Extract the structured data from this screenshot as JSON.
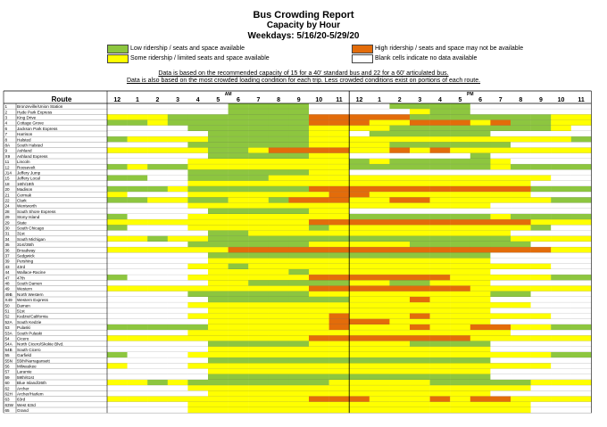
{
  "report": {
    "title": "Bus Crowding Report",
    "subtitle": "Capacity by Hour",
    "dates": "Weekdays:  5/16/20-5/29/20"
  },
  "legend": {
    "items": [
      {
        "label": "Low ridership / seats and space available",
        "color": "#8dc63f"
      },
      {
        "label": "Some ridership / limited seats and space available",
        "color": "#ffff00"
      },
      {
        "label": "High ridership / seats and space may not be available",
        "color": "#e36c0a"
      },
      {
        "label": "Blank cells indicate no data available",
        "color": "#ffffff"
      }
    ]
  },
  "notes": {
    "line1": "Data is based on the recommended capacity of 15 for a 40' standard bus and 22 for a 60' articulated bus.",
    "line2": "Data is also based on the most crowded loading condition for each trip.  Less crowded conditions exist on portions of each route."
  },
  "table": {
    "route_header": "Route",
    "am_label": "AM",
    "pm_label": "PM",
    "hours": [
      "12",
      "1",
      "2",
      "3",
      "4",
      "5",
      "6",
      "7",
      "8",
      "9",
      "10",
      "11",
      "12",
      "1",
      "2",
      "3",
      "4",
      "5",
      "6",
      "7",
      "8",
      "9",
      "10",
      "11"
    ],
    "colors": {
      "G": "#8dc63f",
      "Y": "#ffff00",
      "O": "#e36c0a",
      "W": "#ffffff"
    },
    "rows": [
      {
        "num": "1",
        "name": "Bronzeville/Union Station",
        "cells": "WWWWWWGGGGWWWWGGGGWWWWWW"
      },
      {
        "num": "2",
        "name": "Hyde Park Express",
        "cells": "WWWWWWGGGGWWWWWYGGWWWWWW"
      },
      {
        "num": "3",
        "name": "King Drive",
        "cells": "YYYGGGGGGGOOOOOGGGGGGGYY"
      },
      {
        "num": "4",
        "name": "Cottage Grove",
        "cells": "GGYGGGGGGGOOOYYOOOYOGGYY"
      },
      {
        "num": "6",
        "name": "Jackson Park Express",
        "cells": "WWWWGGGGGGYYYYGGGGGGGGYW"
      },
      {
        "num": "7",
        "name": "Harrison",
        "cells": "WWWWWGGGGGYYWGGGGGGWWWWW"
      },
      {
        "num": "8",
        "name": "Halsted",
        "cells": "GYYYYGGGGGYYYYYYYYYYYYYG"
      },
      {
        "num": "8A",
        "name": "South Halsted",
        "cells": "WWWWGGGGGGYYYYGGGGGGWWWW"
      },
      {
        "num": "9",
        "name": "Ashland",
        "cells": "YYYYYGGYOOOOYYOYOYYYYYYY"
      },
      {
        "num": "X9",
        "name": "Ashland Express",
        "cells": "WWWWWGGGGGYYWWWWWWGWWWWW"
      },
      {
        "num": "11",
        "name": "Lincoln",
        "cells": "WWWWYYYYYYYYGYGGGGGYWWWW"
      },
      {
        "num": "12",
        "name": "Roosevelt",
        "cells": "GYGGYYYYYYYYGGGGGGGYGGGG"
      },
      {
        "num": "J14",
        "name": "Jeffery Jump",
        "cells": "WWWWGGGGGGYYWWWWWWWWWWWW"
      },
      {
        "num": "15",
        "name": "Jeffery Local",
        "cells": "GGWWGGGGYYYYYYYYYYYYYYWW"
      },
      {
        "num": "18",
        "name": "16th/18th",
        "cells": "WWWWYYYYYYYYYYYYYYYYYWWW"
      },
      {
        "num": "20",
        "name": "Madison",
        "cells": "GGGYGGGGGGOOOOOOOOOOOGGG"
      },
      {
        "num": "21",
        "name": "Cermak",
        "cells": "YWWWYYYYYYYOOYYYYYYYYWWW"
      },
      {
        "num": "22",
        "name": "Clark",
        "cells": "GGYYGGYYGOOOYYOOYYYYYYGG"
      },
      {
        "num": "24",
        "name": "Wentworth",
        "cells": "WWWWYYYYYYYYYYYYYYYWWWWW"
      },
      {
        "num": "28",
        "name": "South Shore Express",
        "cells": "WWWWWGGGGGYYWWWWWWWWWWWW"
      },
      {
        "num": "29",
        "name": "Stony Island",
        "cells": "GWWWYYYYYYYYGGGGGGGYGGGG"
      },
      {
        "num": "29",
        "name": "State",
        "cells": "YYYYYYYYYYOOOOOOOOOOOYYY"
      },
      {
        "num": "30",
        "name": "South Chicago",
        "cells": "GWWWYYYYYYGYYYYYYYYYYGWW"
      },
      {
        "num": "31",
        "name": "31st",
        "cells": "WWWWWGGYYYYYYYYYYYYYWWWW"
      },
      {
        "num": "34",
        "name": "South Michigan",
        "cells": "YYGYYGGGGGGGGGGGGGGGYYYY"
      },
      {
        "num": "35",
        "name": "31st/35th",
        "cells": "WWWWGGGGGGYYYYYGGGGGGWWW"
      },
      {
        "num": "36",
        "name": "Broadway",
        "cells": "YYYYYYOOOOOOOOOOOOOOOOYY"
      },
      {
        "num": "37",
        "name": "Sedgwick",
        "cells": "WWWWWGGGGGGGGGGGGGGWWWWW"
      },
      {
        "num": "39",
        "name": "Pershing",
        "cells": "WWWWWYYYYYYYYYYYYYYWWWWW"
      },
      {
        "num": "43",
        "name": "43rd",
        "cells": "WWWWYYGYYYYYYYYYYYYYYYWW"
      },
      {
        "num": "44",
        "name": "Wallace-Racine",
        "cells": "WWWWWYYYYGYYYYYYYYYWWWWW"
      },
      {
        "num": "47",
        "name": "47th",
        "cells": "GWWWYYYYYYOOOOOOOYYYYYGG"
      },
      {
        "num": "48",
        "name": "South Damen",
        "cells": "WWWWWYYGGGGGYYGGYYYWWWWW"
      },
      {
        "num": "49",
        "name": "Western",
        "cells": "YYYYYYYYYYOOOOOOOOYYYYYY"
      },
      {
        "num": "49B",
        "name": "North Western",
        "cells": "WWWWGGGGGGYYYYYYYYYGGWWW"
      },
      {
        "num": "X49",
        "name": "Western Express",
        "cells": "WWWWWGGGGGGGYYYOYYYWWWWW"
      },
      {
        "num": "50",
        "name": "Damen",
        "cells": "WWWWYYYYYYYYYYYYYYYYYWWW"
      },
      {
        "num": "51",
        "name": "51st",
        "cells": "WWWWWYYYYYYYYYYYYYYWWWWW"
      },
      {
        "num": "52",
        "name": "Kedzie/California",
        "cells": "WWWWYYYYYYYOYYYOYYYYYYWW"
      },
      {
        "num": "52A",
        "name": "South Kedzie",
        "cells": "WWWWWYYYYYYOOOYYYYYWWWWW"
      },
      {
        "num": "53",
        "name": "Pulaski",
        "cells": "GGGGGYYYYYYOYYYOYYOOYYGG"
      },
      {
        "num": "53A",
        "name": "South Pulaski",
        "cells": "WWWWYYYYYYYYYYYYYYYYWWWW"
      },
      {
        "num": "54",
        "name": "Cicero",
        "cells": "YYYYYYYYYYOOOOOOOOYYYYYY"
      },
      {
        "num": "54A",
        "name": "North Cicero/Skokie Blvd.",
        "cells": "WWWWWGGGGGYYYYYGGGGWWWWW"
      },
      {
        "num": "54B",
        "name": "South Cicero",
        "cells": "WWWWWYYYYYYYYYYYYYYWWWWW"
      },
      {
        "num": "55",
        "name": "Garfield",
        "cells": "GWWWYYYYYYYYYYYYYYYYYYGG"
      },
      {
        "num": "55N",
        "name": "55th/Narragansett",
        "cells": "WWWWWGGGGGGGGGGGGGGWWWWW"
      },
      {
        "num": "56",
        "name": "Milwaukee",
        "cells": "YWWWYYYYYYYYYYYYYYYYYYWW"
      },
      {
        "num": "57",
        "name": "Laramie",
        "cells": "WWWWWYYYYYYYYYYYYYYWWWWW"
      },
      {
        "num": "59",
        "name": "59th/61st",
        "cells": "WWWWWGGGGGGGGGGGGGGWWWWW"
      },
      {
        "num": "60",
        "name": "Blue Island/26th",
        "cells": "YYGYGGGGGGGYYYYYGGGGGYYY"
      },
      {
        "num": "62",
        "name": "Archer",
        "cells": "WWWWYYYYYYYYYYYYYYYYYWWW"
      },
      {
        "num": "62H",
        "name": "Archer/Harlem",
        "cells": "WWWWWYYYYYYYYYYYYYYWWWWW"
      },
      {
        "num": "63",
        "name": "63rd",
        "cells": "YYYYYYYYYYOOOYYYOYOOYYYY"
      },
      {
        "num": "63W",
        "name": "West 63rd",
        "cells": "WWWWYYYYYYYYYYYYYYYYYWWW"
      },
      {
        "num": "65",
        "name": "Grand",
        "cells": "WWWWYYYYYYYYYYYYYYYYYWWW"
      }
    ]
  }
}
